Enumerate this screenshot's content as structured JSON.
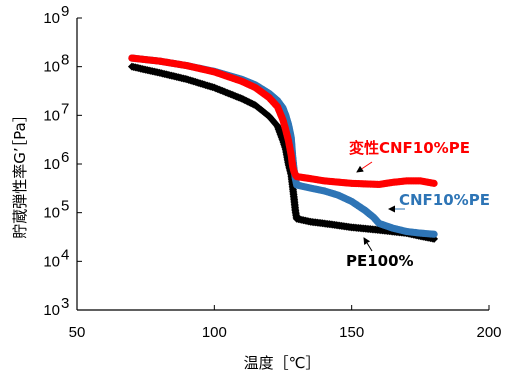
{
  "chart_data": {
    "type": "scatter",
    "title": "",
    "xlabel": "温度［℃］",
    "ylabel": "貯蔵弾性率G’［Pa］",
    "xlim": [
      50,
      200
    ],
    "ylim": [
      1000,
      1000000000
    ],
    "yscale": "log",
    "grid": false,
    "legend": "none",
    "x_ticks": [
      "50",
      "100",
      "150",
      "200"
    ],
    "y_ticks": [
      {
        "base": "10",
        "exp": "3"
      },
      {
        "base": "10",
        "exp": "4"
      },
      {
        "base": "10",
        "exp": "5"
      },
      {
        "base": "10",
        "exp": "6"
      },
      {
        "base": "10",
        "exp": "7"
      },
      {
        "base": "10",
        "exp": "8"
      },
      {
        "base": "10",
        "exp": "9"
      }
    ],
    "series": [
      {
        "name": "PE100%",
        "color": "#000000",
        "marker": "diamond",
        "x": [
          70,
          80,
          90,
          100,
          110,
          115,
          120,
          123,
          125,
          126,
          127,
          128,
          128.5,
          129,
          129.5,
          130,
          135,
          140,
          150,
          160,
          170,
          175,
          180
        ],
        "y": [
          100000000,
          75000000,
          55000000,
          37000000,
          22000000,
          16000000,
          9500000,
          6000000,
          3000000,
          2000000,
          1000000,
          600000,
          350000,
          200000,
          110000,
          75000,
          65000,
          60000,
          50000,
          44000,
          38000,
          33000,
          29000
        ]
      },
      {
        "name": "CNF10%PE",
        "color": "#2E75B6",
        "marker": "circle",
        "x": [
          70,
          80,
          90,
          100,
          110,
          115,
          120,
          123,
          125,
          126,
          127,
          128,
          128.5,
          129,
          129.5,
          130,
          135,
          140,
          145,
          150,
          155,
          158,
          160,
          165,
          170,
          175,
          180
        ],
        "y": [
          150000000,
          130000000,
          105000000,
          80000000,
          55000000,
          42000000,
          28000000,
          20000000,
          14000000,
          10000000,
          6500000,
          3500000,
          1500000,
          800000,
          500000,
          370000,
          320000,
          280000,
          230000,
          170000,
          110000,
          80000,
          60000,
          48000,
          41000,
          38000,
          36000
        ]
      },
      {
        "name": "変性CNF10%PE",
        "color": "#FF0000",
        "marker": "circle",
        "x": [
          70,
          80,
          90,
          100,
          110,
          115,
          120,
          123,
          125,
          126,
          127,
          128,
          128.5,
          129,
          129.5,
          130,
          135,
          140,
          150,
          160,
          165,
          170,
          175,
          180
        ],
        "y": [
          150000000,
          130000000,
          105000000,
          78000000,
          50000000,
          37000000,
          23000000,
          15000000,
          8000000,
          5000000,
          3000000,
          1500000,
          900000,
          700000,
          600000,
          550000,
          500000,
          450000,
          400000,
          380000,
          420000,
          450000,
          450000,
          400000
        ]
      }
    ],
    "annotations": [
      {
        "text": "変性CNF10%PE",
        "color": "#FF0000",
        "series": 2,
        "x": 132,
        "y": 500000
      },
      {
        "text": "CNF10%PE",
        "color": "#2E75B6",
        "series": 1,
        "x": 166,
        "y": 48000
      },
      {
        "text": "PE100%",
        "color": "#000000",
        "series": 0,
        "x": 155,
        "y": 45000
      }
    ]
  }
}
